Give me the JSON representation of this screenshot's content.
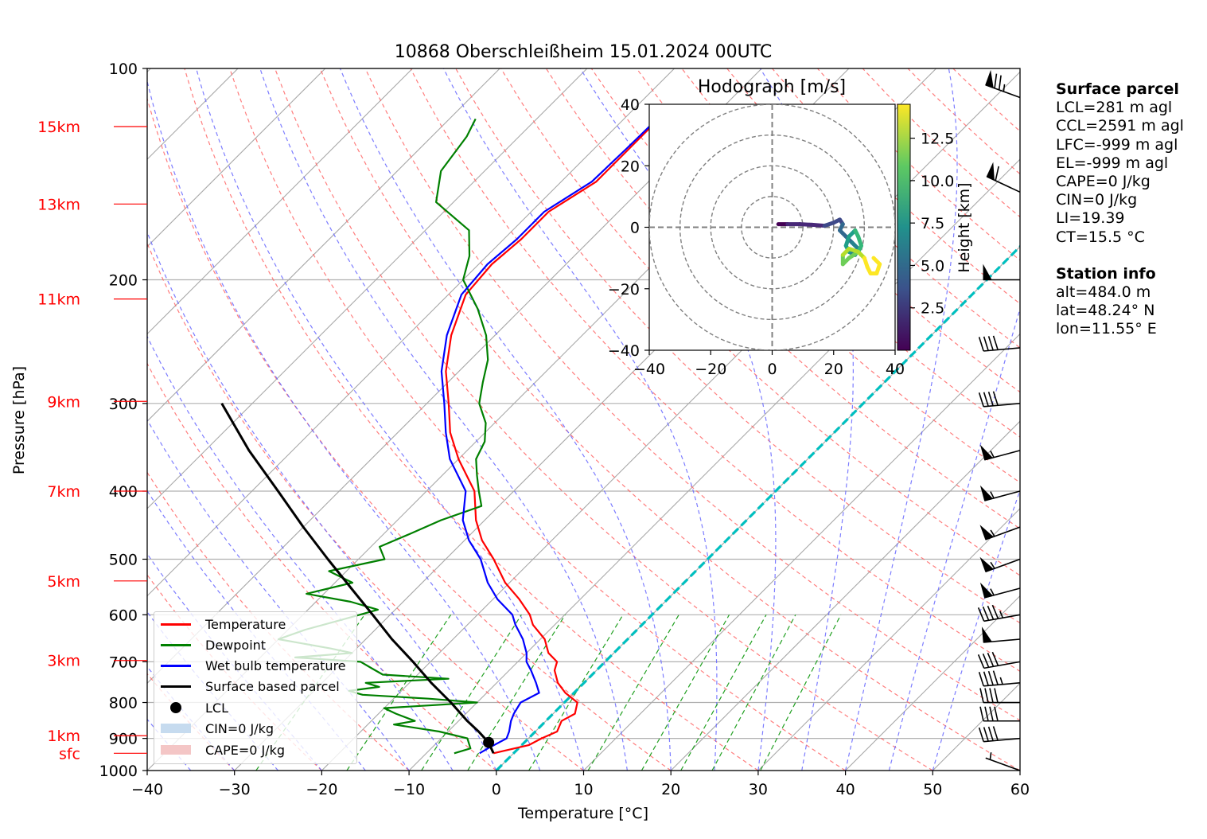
{
  "chart_data": {
    "type": "line",
    "title": "10868 Oberschleißheim 15.01.2024 00UTC",
    "xlabel": "Temperature [°C]",
    "ylabel": "Pressure [hPa]",
    "xlim": [
      -40,
      60
    ],
    "ylim": [
      1000,
      100
    ],
    "yscale": "log",
    "xticks": [
      "−40",
      "−30",
      "−20",
      "−10",
      "0",
      "10",
      "20",
      "30",
      "40",
      "50",
      "60"
    ],
    "xtick_values": [
      -40,
      -30,
      -20,
      -10,
      0,
      10,
      20,
      30,
      40,
      50,
      60
    ],
    "yticks": [
      "100",
      "200",
      "300",
      "400",
      "500",
      "600",
      "700",
      "800",
      "900",
      "1000"
    ],
    "ytick_values": [
      100,
      200,
      300,
      400,
      500,
      600,
      700,
      800,
      900,
      1000
    ],
    "grid": true,
    "skew": "skew-T log-p",
    "height_markers": [
      {
        "label": "15km",
        "p": 121
      },
      {
        "label": "13km",
        "p": 156
      },
      {
        "label": "11km",
        "p": 213
      },
      {
        "label": "9km",
        "p": 298
      },
      {
        "label": "7km",
        "p": 400
      },
      {
        "label": "5km",
        "p": 537
      },
      {
        "label": "3km",
        "p": 697
      },
      {
        "label": "1km",
        "p": 892
      },
      {
        "label": "sfc",
        "p": 945
      }
    ],
    "legend": {
      "placement": "lower left",
      "entries": [
        "Temperature",
        "Dewpoint",
        "Wet bulb temperature",
        "Surface based parcel",
        "LCL",
        "CIN=0 J/kg",
        "CAPE=0 J/kg"
      ]
    },
    "colors": {
      "temperature": "#ff0000",
      "dewpoint": "#008000",
      "wetbulb": "#0000ff",
      "parcel": "#000000",
      "zero_isotherm": "#00bfbf",
      "dry_adiabat": "#ff6666",
      "moist_adiabat": "#6666ff",
      "mixing_ratio": "#22a022",
      "cin": "#c6dbef",
      "cape": "#f4c6c6"
    },
    "series": [
      {
        "name": "Temperature",
        "points": [
          [
            945,
            -2.3
          ],
          [
            920,
            0.8
          ],
          [
            900,
            1.5
          ],
          [
            880,
            2.5
          ],
          [
            850,
            1.8
          ],
          [
            830,
            2.5
          ],
          [
            800,
            1.5
          ],
          [
            775,
            -1.0
          ],
          [
            750,
            -3.0
          ],
          [
            720,
            -4.8
          ],
          [
            700,
            -5.5
          ],
          [
            680,
            -7.5
          ],
          [
            650,
            -9.5
          ],
          [
            620,
            -12.5
          ],
          [
            600,
            -14.0
          ],
          [
            570,
            -17.0
          ],
          [
            540,
            -20.5
          ],
          [
            500,
            -24.5
          ],
          [
            470,
            -28.0
          ],
          [
            440,
            -31.0
          ],
          [
            400,
            -34.5
          ],
          [
            360,
            -40.0
          ],
          [
            330,
            -44.0
          ],
          [
            300,
            -47.5
          ],
          [
            270,
            -51.5
          ],
          [
            240,
            -55.0
          ],
          [
            210,
            -58.0
          ],
          [
            190,
            -58.5
          ],
          [
            175,
            -58.0
          ],
          [
            160,
            -58.0
          ],
          [
            145,
            -56.0
          ],
          [
            130,
            -56.0
          ],
          [
            120,
            -56.0
          ],
          [
            115,
            -56.0
          ]
        ]
      },
      {
        "name": "Dewpoint",
        "points": [
          [
            945,
            -6.8
          ],
          [
            930,
            -5.5
          ],
          [
            900,
            -7.0
          ],
          [
            880,
            -11.0
          ],
          [
            860,
            -17.0
          ],
          [
            850,
            -15.0
          ],
          [
            830,
            -18.0
          ],
          [
            815,
            -20.0
          ],
          [
            800,
            -10.0
          ],
          [
            790,
            -16.0
          ],
          [
            780,
            -24.0
          ],
          [
            770,
            -26.0
          ],
          [
            760,
            -23.0
          ],
          [
            750,
            -25.0
          ],
          [
            740,
            -16.0
          ],
          [
            730,
            -24.0
          ],
          [
            715,
            -26.0
          ],
          [
            700,
            -28.0
          ],
          [
            690,
            -36.0
          ],
          [
            680,
            -30.0
          ],
          [
            670,
            -33.0
          ],
          [
            650,
            -40.0
          ],
          [
            630,
            -38.0
          ],
          [
            610,
            -35.0
          ],
          [
            590,
            -32.0
          ],
          [
            575,
            -36.0
          ],
          [
            560,
            -42.0
          ],
          [
            540,
            -38.0
          ],
          [
            520,
            -42.0
          ],
          [
            500,
            -37.0
          ],
          [
            480,
            -39.0
          ],
          [
            460,
            -37.0
          ],
          [
            440,
            -35.0
          ],
          [
            420,
            -32.0
          ],
          [
            400,
            -34.0
          ],
          [
            380,
            -36.0
          ],
          [
            360,
            -38.0
          ],
          [
            340,
            -39.0
          ],
          [
            320,
            -41.0
          ],
          [
            300,
            -44.0
          ],
          [
            280,
            -46.0
          ],
          [
            260,
            -48.0
          ],
          [
            240,
            -51.0
          ],
          [
            220,
            -55.0
          ],
          [
            200,
            -60.0
          ],
          [
            185,
            -62.0
          ],
          [
            170,
            -65.0
          ],
          [
            155,
            -72.0
          ],
          [
            140,
            -75.0
          ],
          [
            125,
            -76.0
          ],
          [
            118,
            -77.0
          ]
        ]
      },
      {
        "name": "Wet bulb temperature",
        "points": [
          [
            945,
            -3.9
          ],
          [
            930,
            -3.5
          ],
          [
            900,
            -2.5
          ],
          [
            880,
            -3.0
          ],
          [
            850,
            -4.0
          ],
          [
            830,
            -4.5
          ],
          [
            800,
            -5.0
          ],
          [
            775,
            -4.0
          ],
          [
            750,
            -5.5
          ],
          [
            720,
            -7.5
          ],
          [
            700,
            -9.0
          ],
          [
            680,
            -10.0
          ],
          [
            650,
            -12.0
          ],
          [
            620,
            -14.5
          ],
          [
            600,
            -16.0
          ],
          [
            570,
            -19.5
          ],
          [
            540,
            -22.5
          ],
          [
            500,
            -26.0
          ],
          [
            470,
            -29.5
          ],
          [
            440,
            -32.5
          ],
          [
            400,
            -35.5
          ],
          [
            360,
            -41.0
          ],
          [
            330,
            -44.5
          ],
          [
            300,
            -48.0
          ],
          [
            270,
            -52.0
          ],
          [
            240,
            -55.5
          ],
          [
            210,
            -58.5
          ],
          [
            190,
            -59.0
          ],
          [
            175,
            -58.5
          ],
          [
            160,
            -58.5
          ],
          [
            145,
            -56.5
          ],
          [
            130,
            -56.3
          ],
          [
            120,
            -56.2
          ],
          [
            115,
            -56.0
          ]
        ]
      },
      {
        "name": "Surface based parcel",
        "points": [
          [
            945,
            -2.3
          ],
          [
            912,
            -4.1
          ],
          [
            880,
            -6.5
          ],
          [
            850,
            -9.0
          ],
          [
            800,
            -13.0
          ],
          [
            750,
            -17.5
          ],
          [
            700,
            -22.0
          ],
          [
            650,
            -27.0
          ],
          [
            600,
            -32.0
          ],
          [
            550,
            -37.5
          ],
          [
            500,
            -43.5
          ],
          [
            450,
            -50.0
          ],
          [
            400,
            -57.0
          ],
          [
            350,
            -65.0
          ],
          [
            300,
            -73.5
          ]
        ]
      }
    ],
    "lcl": {
      "p": 912,
      "t": -4.1
    },
    "hodograph": {
      "title": "Hodograph [m/s]",
      "xlim": [
        -40,
        40
      ],
      "ylim": [
        -40,
        40
      ],
      "xticks": [
        "−40",
        "−20",
        "0",
        "20",
        "40"
      ],
      "yticks": [
        "40",
        "20",
        "0",
        "−20",
        "−40"
      ],
      "rings": [
        10,
        20,
        30,
        40
      ],
      "colorbar": {
        "label": "Height [km]",
        "ticks": [
          "12.5",
          "10.0",
          "7.5",
          "5.0",
          "2.5"
        ],
        "tick_values": [
          12.5,
          10.0,
          7.5,
          5.0,
          2.5
        ],
        "range": [
          0,
          14.5
        ]
      },
      "points": [
        [
          2,
          1,
          0.3
        ],
        [
          5,
          1,
          0.8
        ],
        [
          9,
          1,
          1.5
        ],
        [
          13,
          0.8,
          2.0
        ],
        [
          17,
          0.5,
          2.5
        ],
        [
          20,
          1.5,
          3.0
        ],
        [
          22,
          2.5,
          3.5
        ],
        [
          23,
          1,
          4.0
        ],
        [
          22,
          -1,
          4.5
        ],
        [
          24,
          -3,
          5.0
        ],
        [
          26,
          -5,
          5.5
        ],
        [
          28,
          -7,
          6.0
        ],
        [
          27,
          -9,
          6.5
        ],
        [
          25,
          -8,
          7.0
        ],
        [
          24,
          -6,
          7.5
        ],
        [
          25,
          -3,
          8.0
        ],
        [
          27,
          -1,
          8.5
        ],
        [
          28,
          -3,
          9.0
        ],
        [
          29,
          -6,
          9.5
        ],
        [
          28,
          -8,
          10.0
        ],
        [
          25,
          -10,
          10.5
        ],
        [
          23,
          -12,
          11.0
        ],
        [
          23,
          -9,
          11.5
        ],
        [
          25,
          -7,
          12.0
        ],
        [
          28,
          -8,
          12.5
        ],
        [
          30,
          -10,
          13.0
        ],
        [
          31,
          -13,
          13.5
        ],
        [
          32,
          -15,
          14.0
        ],
        [
          34,
          -15,
          14.2
        ],
        [
          35,
          -12,
          14.4
        ],
        [
          33,
          -10,
          14.5
        ]
      ]
    },
    "wind_barbs": [
      {
        "p": 1000,
        "speed_kt": 5,
        "dir": 290
      },
      {
        "p": 900,
        "speed_kt": 40,
        "dir": 265
      },
      {
        "p": 850,
        "speed_kt": 40,
        "dir": 270
      },
      {
        "p": 800,
        "speed_kt": 40,
        "dir": 270
      },
      {
        "p": 750,
        "speed_kt": 45,
        "dir": 265
      },
      {
        "p": 700,
        "speed_kt": 40,
        "dir": 260
      },
      {
        "p": 650,
        "speed_kt": 50,
        "dir": 265
      },
      {
        "p": 600,
        "speed_kt": 45,
        "dir": 260
      },
      {
        "p": 550,
        "speed_kt": 55,
        "dir": 255
      },
      {
        "p": 500,
        "speed_kt": 55,
        "dir": 250
      },
      {
        "p": 450,
        "speed_kt": 55,
        "dir": 250
      },
      {
        "p": 400,
        "speed_kt": 55,
        "dir": 255
      },
      {
        "p": 350,
        "speed_kt": 55,
        "dir": 255
      },
      {
        "p": 300,
        "speed_kt": 40,
        "dir": 265
      },
      {
        "p": 250,
        "speed_kt": 40,
        "dir": 265
      },
      {
        "p": 200,
        "speed_kt": 50,
        "dir": 270
      },
      {
        "p": 150,
        "speed_kt": 60,
        "dir": 295
      },
      {
        "p": 110,
        "speed_kt": 75,
        "dir": 290
      }
    ]
  },
  "surface_parcel": {
    "header": "Surface parcel",
    "lines": [
      "LCL=281 m agl",
      "CCL=2591 m agl",
      "LFC=-999 m agl",
      "EL=-999 m agl",
      "CAPE=0 J/kg",
      "CIN=0 J/kg",
      "LI=19.39",
      "CT=15.5 °C"
    ]
  },
  "station_info": {
    "header": "Station info",
    "lines": [
      "alt=484.0 m",
      "lat=48.24° N",
      "lon=11.55° E"
    ]
  }
}
